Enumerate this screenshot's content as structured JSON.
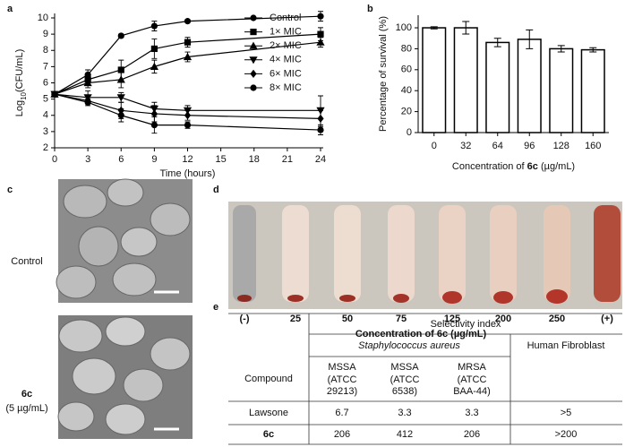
{
  "panel_labels": [
    "a",
    "b",
    "c",
    "d",
    "e"
  ],
  "chart_data": [
    {
      "type": "line",
      "x_label": "Time (hours)",
      "y_label": [
        "Log",
        "10",
        "(CFU/mL)"
      ],
      "x": [
        0,
        3,
        6,
        9,
        12,
        24
      ],
      "xlim": [
        0,
        24
      ],
      "xticks": [
        0,
        3,
        6,
        9,
        12,
        15,
        18,
        21,
        24
      ],
      "ylim": [
        2,
        10
      ],
      "yticks": [
        2,
        3,
        4,
        5,
        6,
        7,
        8,
        9,
        10
      ],
      "legend": "upper right",
      "series": [
        {
          "name": "Control",
          "color": "#000000",
          "marker": "circle",
          "values": [
            5.3,
            6.5,
            8.9,
            9.5,
            9.8,
            10.1
          ],
          "errors": [
            0.1,
            0.3,
            0.1,
            0.3,
            0.1,
            0.3
          ]
        },
        {
          "name": "1× MIC",
          "color": "#000000",
          "marker": "square",
          "values": [
            5.3,
            6.2,
            6.8,
            8.1,
            8.5,
            9.0
          ],
          "errors": [
            0.1,
            0.3,
            0.6,
            0.6,
            0.3,
            0.4
          ]
        },
        {
          "name": "2× MIC",
          "color": "#000000",
          "marker": "triangle-up",
          "values": [
            5.3,
            6.0,
            6.2,
            7.0,
            7.6,
            8.5
          ],
          "errors": [
            0.1,
            0.3,
            0.5,
            0.4,
            0.3,
            0.3
          ]
        },
        {
          "name": "4× MIC",
          "color": "#000000",
          "marker": "triangle-down",
          "values": [
            5.3,
            5.1,
            5.1,
            4.4,
            4.3,
            4.3
          ],
          "errors": [
            0.1,
            0.4,
            0.3,
            0.4,
            0.3,
            0.9
          ]
        },
        {
          "name": "6× MIC",
          "color": "#000000",
          "marker": "diamond",
          "values": [
            5.3,
            4.9,
            4.3,
            4.1,
            4.0,
            3.8
          ],
          "errors": [
            0.1,
            0.2,
            0.5,
            0.5,
            0.3,
            0.5
          ]
        },
        {
          "name": "8× MIC",
          "color": "#000000",
          "marker": "circle",
          "values": [
            5.3,
            4.8,
            4.0,
            3.4,
            3.4,
            3.1
          ],
          "errors": [
            0.1,
            0.2,
            0.4,
            0.5,
            0.2,
            0.3
          ]
        }
      ]
    },
    {
      "type": "bar",
      "x_label": [
        "Concentration of ",
        "6c",
        " (µg/mL)"
      ],
      "y_label": "Percentage of survival (%)",
      "categories": [
        "0",
        "32",
        "64",
        "96",
        "128",
        "160"
      ],
      "values": [
        100,
        100,
        86,
        89,
        80,
        79
      ],
      "errors": [
        1,
        6,
        4,
        9,
        3,
        2
      ],
      "color": "#ffffff",
      "ylim": [
        0,
        112
      ],
      "yticks": [
        0,
        20,
        40,
        60,
        80,
        100
      ]
    }
  ],
  "micrographs": {
    "control_label": "Control",
    "treated_label": "6c",
    "treated_note": "(5 µg/mL)"
  },
  "hemolysis_photo": {
    "tube_labels": [
      "(-)",
      "25",
      "50",
      "75",
      "125",
      "200",
      "250",
      "(+)"
    ],
    "x_label": "Concentration of 6c (µg/mL)"
  },
  "table": {
    "group_header": "Selectivity index",
    "compound_header": "Compound",
    "organism": "Staphylococcus aureus",
    "fibroblast_header": "Human Fibroblast",
    "strains": [
      [
        "MSSA",
        "(ATCC",
        "29213)"
      ],
      [
        "MSSA",
        "(ATCC",
        "6538)"
      ],
      [
        "MRSA",
        "(ATCC",
        "BAA-44)"
      ]
    ],
    "rows": [
      [
        "Lawsone",
        "6.7",
        "3.3",
        "3.3",
        ">5"
      ],
      [
        "6c",
        "206",
        "412",
        "206",
        ">200"
      ]
    ]
  }
}
